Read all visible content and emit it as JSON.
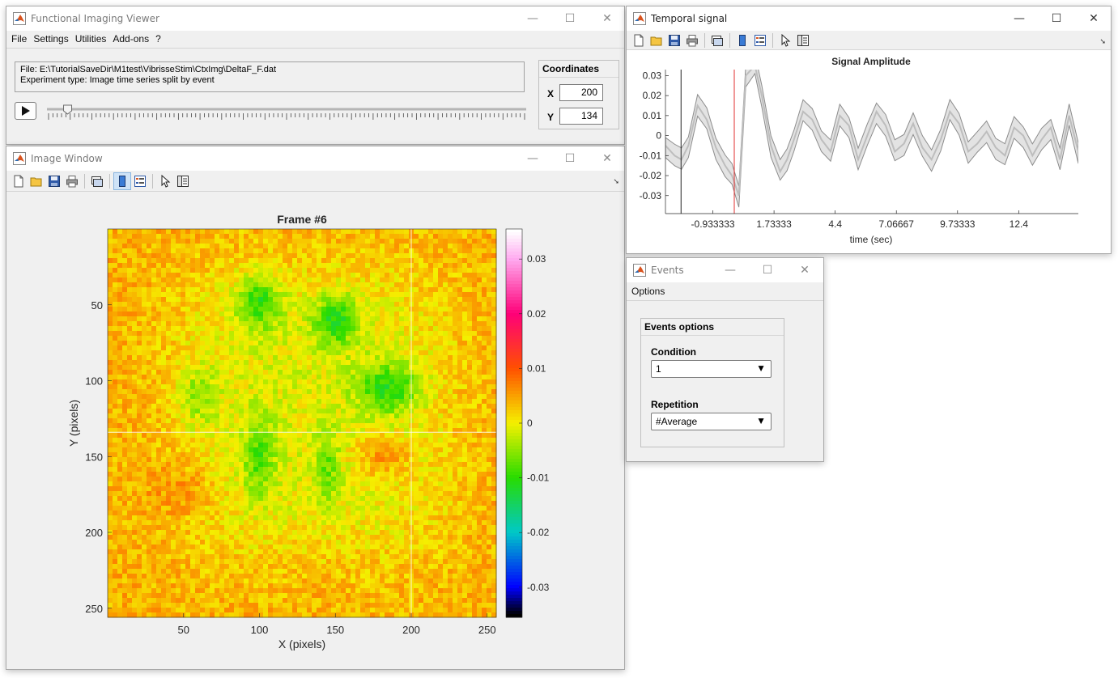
{
  "viewer": {
    "title": "Functional Imaging Viewer",
    "menu": [
      "File",
      "Settings",
      "Utilities",
      "Add-ons",
      "?"
    ],
    "file_line": "File: E:\\TutorialSaveDir\\M1test\\VibrisseStim\\CtxImg\\DeltaF_F.dat",
    "type_line": "Experiment type: Image time series split by event",
    "play_icon": "play-icon",
    "coords": {
      "title": "Coordinates",
      "x_label": "X",
      "x_value": "200",
      "y_label": "Y",
      "y_value": "134"
    },
    "slider_fraction": 0.04
  },
  "image_window": {
    "title": "Image Window",
    "frame_title": "Frame #6",
    "xlabel": "X (pixels)",
    "ylabel": "Y (pixels)",
    "xticks": [
      "50",
      "100",
      "150",
      "200",
      "250"
    ],
    "yticks": [
      "50",
      "100",
      "150",
      "200",
      "250"
    ],
    "colorbar_ticks": [
      "0.03",
      "0.02",
      "0.01",
      "0",
      "-0.01",
      "-0.02",
      "-0.03"
    ],
    "crosshair": {
      "x": 200,
      "y": 134
    }
  },
  "temporal": {
    "title": "Temporal signal",
    "chart_title": "Signal Amplitude",
    "xlabel": "time (sec)",
    "xticks": [
      "-0.933333",
      "1.73333",
      "4.4",
      "7.06667",
      "9.73333",
      "12.4"
    ],
    "yticks": [
      "0.03",
      "0.02",
      "0.01",
      "0",
      "-0.01",
      "-0.02",
      "-0.03"
    ]
  },
  "events": {
    "title": "Events",
    "menu": [
      "Options"
    ],
    "panel_title": "Events options",
    "condition_label": "Condition",
    "condition_value": "1",
    "repetition_label": "Repetition",
    "repetition_value": "#Average"
  },
  "window_controls": {
    "minimize": "—",
    "maximize": "☐",
    "close": "✕"
  },
  "chart_data": {
    "type": "line",
    "title": "Signal Amplitude",
    "xlabel": "time (sec)",
    "ylabel": "",
    "xlim": [
      -3.0,
      15.0
    ],
    "ylim": [
      -0.039,
      0.033
    ],
    "vlines": [
      -2.32,
      0.0
    ],
    "series": [
      {
        "x": [
          -3.0,
          -2.6,
          -2.3,
          -2.0,
          -1.6,
          -1.2,
          -0.8,
          -0.4,
          -0.1,
          0.2,
          0.5,
          0.9,
          1.2,
          1.6,
          2.0,
          2.3,
          2.6,
          3.0,
          3.4,
          3.8,
          4.2,
          4.6,
          5.0,
          5.4,
          5.8,
          6.2,
          6.6,
          7.0,
          7.4,
          7.8,
          8.2,
          8.6,
          9.0,
          9.4,
          9.8,
          10.2,
          10.6,
          11.0,
          11.4,
          11.8,
          12.2,
          12.6,
          13.0,
          13.4,
          13.8,
          14.2,
          14.6,
          15.0
        ],
        "values": [
          -0.005,
          -0.01,
          -0.012,
          -0.005,
          0.015,
          0.008,
          -0.006,
          -0.015,
          -0.02,
          -0.03,
          0.03,
          0.035,
          0.02,
          -0.005,
          -0.018,
          -0.012,
          -0.002,
          0.012,
          0.008,
          -0.002,
          -0.008,
          0.01,
          0.005,
          -0.012,
          0.0,
          0.012,
          0.005,
          -0.008,
          -0.004,
          0.006,
          -0.006,
          -0.012,
          -0.002,
          0.012,
          0.006,
          -0.008,
          -0.004,
          0.002,
          -0.006,
          -0.01,
          0.004,
          0.0,
          -0.01,
          -0.002,
          0.004,
          -0.012,
          0.01,
          -0.008
        ]
      }
    ]
  }
}
